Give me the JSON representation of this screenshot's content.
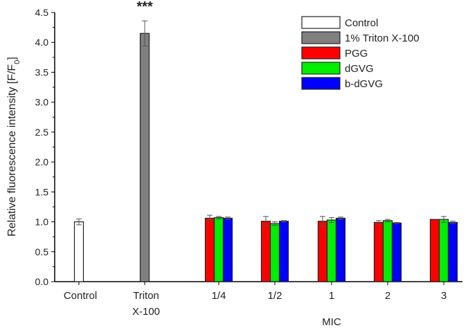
{
  "chart_data": {
    "type": "bar",
    "ylabel": "Relative fluorescence intensity [F/F0]",
    "ylabel_main": "Relative fluorescence intensity [F/F",
    "ylabel_sub": "0",
    "ylabel_end": "]",
    "xlabel": "MIC",
    "ylim": [
      0,
      4.5
    ],
    "yticks": [
      "0.0",
      "0.5",
      "1.0",
      "1.5",
      "2.0",
      "2.5",
      "3.0",
      "3.5",
      "4.0",
      "4.5"
    ],
    "grid": false,
    "legend_position": "top-right",
    "legend": [
      {
        "name": "Control",
        "color": "#ffffff"
      },
      {
        "name": "1% Triton X-100",
        "color": "#808080"
      },
      {
        "name": "PGG",
        "color": "#ff0000"
      },
      {
        "name": "dGVG",
        "color": "#00ee00"
      },
      {
        "name": "b-dGVG",
        "color": "#0000ff"
      }
    ],
    "singles": [
      {
        "label": "Control",
        "value": 1.0,
        "error": 0.05,
        "color": "#ffffff"
      },
      {
        "label": "Triton\nX-100",
        "label_lines": [
          "Triton",
          "X-100"
        ],
        "value": 4.15,
        "error": 0.21,
        "color": "#808080",
        "annotation": "***"
      }
    ],
    "categories": [
      "1/4",
      "1/2",
      "1",
      "2",
      "3"
    ],
    "series": [
      {
        "name": "PGG",
        "color": "#ff0000",
        "values": [
          1.06,
          1.01,
          1.01,
          0.99,
          1.04
        ],
        "errors": [
          0.05,
          0.08,
          0.08,
          0.03,
          0.0
        ]
      },
      {
        "name": "dGVG",
        "color": "#00ee00",
        "values": [
          1.07,
          0.97,
          1.03,
          1.02,
          1.04
        ],
        "errors": [
          0.02,
          0.03,
          0.04,
          0.02,
          0.05
        ]
      },
      {
        "name": "b-dGVG",
        "color": "#0000ff",
        "values": [
          1.06,
          1.01,
          1.06,
          0.98,
          0.99
        ],
        "errors": [
          0.02,
          0.01,
          0.02,
          0.01,
          0.02
        ]
      }
    ]
  }
}
